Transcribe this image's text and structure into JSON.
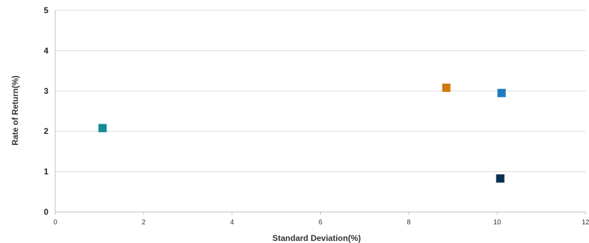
{
  "chart_data": {
    "type": "scatter",
    "title": "",
    "xlabel": "Standard Deviation(%)",
    "ylabel": "Rate of Return(%)",
    "xlim": [
      0,
      12
    ],
    "ylim": [
      0,
      5
    ],
    "x_ticks": [
      "0",
      "2",
      "4",
      "6",
      "8",
      "10",
      "12"
    ],
    "y_ticks": [
      "0",
      "1",
      "2",
      "3",
      "4",
      "5"
    ],
    "grid": "horizontal",
    "legend": "none",
    "marker": "square",
    "points": [
      {
        "x": 1.07,
        "y": 2.08,
        "color": "#138a95"
      },
      {
        "x": 8.85,
        "y": 3.08,
        "color": "#d07a10"
      },
      {
        "x": 10.1,
        "y": 2.95,
        "color": "#1f7bbf"
      },
      {
        "x": 10.07,
        "y": 0.83,
        "color": "#0b2f52"
      }
    ]
  }
}
